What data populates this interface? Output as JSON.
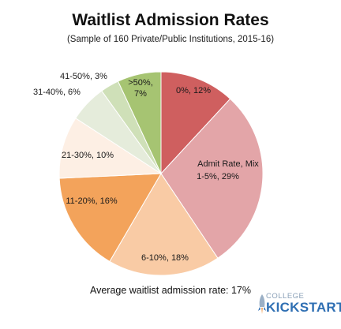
{
  "chart_data": {
    "type": "pie",
    "title": "Waitlist Admission Rates",
    "subtitle": "(Sample of 160 Private/Public Institutions, 2015-16)",
    "slices": [
      {
        "label": "0%",
        "value": 12,
        "text": "0%, 12%",
        "color": "#cf5f5f"
      },
      {
        "label": "Admit Rate, Mix",
        "value": 0,
        "text": "Admit Rate, Mix",
        "color": "#cf5f5f"
      },
      {
        "label": "1-5%",
        "value": 29,
        "text": "1-5%, 29%",
        "color": "#e3a5a8"
      },
      {
        "label": "6-10%",
        "value": 18,
        "text": "6-10%, 18%",
        "color": "#f9cba5"
      },
      {
        "label": "11-20%",
        "value": 16,
        "text": "11-20%, 16%",
        "color": "#f3a35b"
      },
      {
        "label": "21-30%",
        "value": 10,
        "text": "21-30%, 10%",
        "color": "#fdefe4"
      },
      {
        "label": "31-40%",
        "value": 6,
        "text": "31-40%, 6%",
        "color": "#e5ecdb"
      },
      {
        "label": "41-50%",
        "value": 3,
        "text": "41-50%, 3%",
        "color": "#cfe0b8"
      },
      {
        "label": ">50%",
        "value": 7,
        "text": ">50%, 7%",
        "color": "#a6c472"
      }
    ],
    "legend": "none"
  },
  "footnote": "Average waitlist admission rate: 17%",
  "brand": {
    "small": "COLLEGE",
    "big": "KICKSTART",
    "color": "#2f6fb3"
  }
}
